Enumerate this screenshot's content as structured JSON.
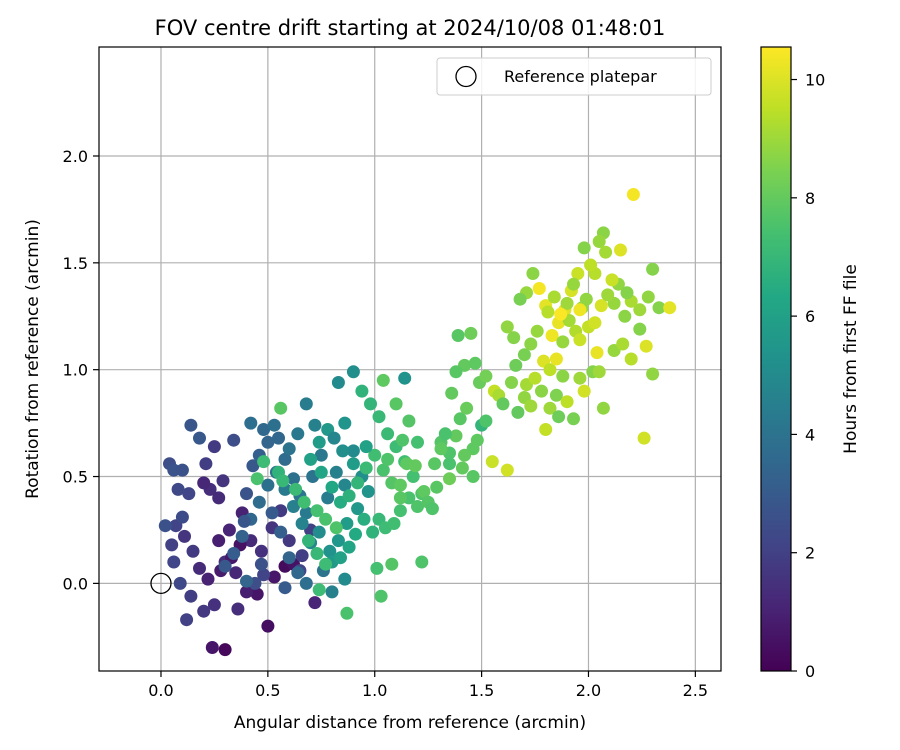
{
  "chart_data": {
    "type": "scatter",
    "title": "FOV centre drift starting at 2024/10/08 01:48:01",
    "xlabel": "Angular distance from reference (arcmin)",
    "ylabel": "Rotation from reference (arcmin)",
    "xlim": [
      -0.29,
      2.62
    ],
    "ylim": [
      -0.41,
      2.51
    ],
    "xticks": [
      0.0,
      0.5,
      1.0,
      1.5,
      2.0,
      2.5
    ],
    "xtick_labels": [
      "0.0",
      "0.5",
      "1.0",
      "1.5",
      "2.0",
      "2.5"
    ],
    "yticks": [
      0.0,
      0.5,
      1.0,
      1.5,
      2.0
    ],
    "ytick_labels": [
      "0.0",
      "0.5",
      "1.0",
      "1.5",
      "2.0"
    ],
    "grid": true,
    "legend": {
      "position": "top-right",
      "entries": [
        "Reference platepar"
      ]
    },
    "colorbar": {
      "label": "Hours from first FF file",
      "range": [
        0,
        10.55
      ],
      "ticks": [
        0,
        2,
        4,
        6,
        8,
        10
      ],
      "tick_labels": [
        "0",
        "2",
        "4",
        "6",
        "8",
        "10"
      ],
      "colormap": "viridis"
    },
    "reference_point": {
      "x": 0.0,
      "y": 0.0
    },
    "points": [
      [
        0.3,
        -0.31,
        0.2
      ],
      [
        0.24,
        -0.3,
        0.6
      ],
      [
        0.5,
        -0.2,
        0.4
      ],
      [
        0.58,
        0.08,
        0.3
      ],
      [
        0.62,
        0.09,
        0.5
      ],
      [
        0.53,
        0.03,
        0.7
      ],
      [
        0.45,
        -0.05,
        0.6
      ],
      [
        0.4,
        -0.04,
        0.9
      ],
      [
        0.35,
        0.05,
        1.2
      ],
      [
        0.3,
        0.1,
        1.4
      ],
      [
        0.27,
        0.2,
        0.9
      ],
      [
        0.32,
        0.25,
        1.1
      ],
      [
        0.38,
        0.33,
        1.0
      ],
      [
        0.42,
        0.2,
        1.3
      ],
      [
        0.47,
        0.15,
        1.5
      ],
      [
        0.52,
        0.26,
        1.6
      ],
      [
        0.56,
        0.34,
        1.8
      ],
      [
        0.6,
        0.2,
        1.7
      ],
      [
        0.66,
        0.13,
        1.9
      ],
      [
        0.7,
        0.25,
        2.0
      ],
      [
        0.72,
        -0.09,
        1.1
      ],
      [
        0.65,
        0.06,
        2.2
      ],
      [
        0.48,
        0.04,
        2.1
      ],
      [
        0.44,
        0.0,
        2.5
      ],
      [
        0.36,
        -0.12,
        1.4
      ],
      [
        0.25,
        -0.1,
        1.5
      ],
      [
        0.2,
        -0.13,
        1.7
      ],
      [
        0.14,
        -0.06,
        1.9
      ],
      [
        0.12,
        -0.17,
        2.0
      ],
      [
        0.09,
        0.0,
        2.3
      ],
      [
        0.06,
        0.1,
        2.2
      ],
      [
        0.05,
        0.18,
        2.0
      ],
      [
        0.07,
        0.27,
        2.1
      ],
      [
        0.11,
        0.22,
        1.6
      ],
      [
        0.15,
        0.15,
        1.8
      ],
      [
        0.18,
        0.07,
        1.3
      ],
      [
        0.22,
        0.02,
        1.0
      ],
      [
        0.28,
        0.06,
        0.8
      ],
      [
        0.33,
        0.12,
        0.7
      ],
      [
        0.37,
        0.18,
        0.5
      ],
      [
        0.02,
        0.27,
        2.6
      ],
      [
        0.1,
        0.31,
        2.4
      ],
      [
        0.13,
        0.42,
        2.2
      ],
      [
        0.08,
        0.44,
        2.3
      ],
      [
        0.04,
        0.56,
        2.5
      ],
      [
        0.06,
        0.53,
        2.7
      ],
      [
        0.1,
        0.53,
        2.6
      ],
      [
        0.14,
        0.74,
        2.8
      ],
      [
        0.18,
        0.68,
        2.9
      ],
      [
        0.21,
        0.56,
        1.9
      ],
      [
        0.25,
        0.64,
        1.8
      ],
      [
        0.29,
        0.48,
        1.6
      ],
      [
        0.23,
        0.44,
        1.4
      ],
      [
        0.27,
        0.4,
        1.3
      ],
      [
        0.2,
        0.47,
        1.2
      ],
      [
        0.34,
        0.67,
        2.5
      ],
      [
        0.4,
        0.42,
        2.7
      ],
      [
        0.43,
        0.55,
        2.9
      ],
      [
        0.46,
        0.6,
        3.2
      ],
      [
        0.5,
        0.66,
        3.4
      ],
      [
        0.48,
        0.72,
        3.6
      ],
      [
        0.42,
        0.75,
        3.8
      ],
      [
        0.55,
        0.68,
        3.5
      ],
      [
        0.58,
        0.58,
        3.7
      ],
      [
        0.62,
        0.49,
        3.9
      ],
      [
        0.65,
        0.41,
        4.1
      ],
      [
        0.68,
        0.33,
        4.3
      ],
      [
        0.71,
        0.5,
        4.0
      ],
      [
        0.75,
        0.6,
        4.2
      ],
      [
        0.78,
        0.4,
        4.4
      ],
      [
        0.82,
        0.52,
        4.6
      ],
      [
        0.86,
        0.46,
        4.8
      ],
      [
        0.9,
        0.62,
        5.0
      ],
      [
        0.94,
        0.5,
        5.2
      ],
      [
        0.97,
        0.43,
        5.4
      ],
      [
        0.92,
        0.35,
        5.6
      ],
      [
        0.87,
        0.28,
        5.8
      ],
      [
        0.83,
        0.2,
        5.5
      ],
      [
        0.79,
        0.15,
        5.3
      ],
      [
        0.74,
        0.24,
        5.1
      ],
      [
        0.7,
        0.19,
        4.9
      ],
      [
        0.66,
        0.28,
        4.7
      ],
      [
        0.62,
        0.36,
        4.5
      ],
      [
        0.58,
        0.44,
        4.3
      ],
      [
        0.54,
        0.52,
        4.1
      ],
      [
        0.5,
        0.46,
        3.9
      ],
      [
        0.46,
        0.38,
        3.7
      ],
      [
        0.42,
        0.3,
        3.5
      ],
      [
        0.38,
        0.22,
        3.3
      ],
      [
        0.34,
        0.14,
        3.1
      ],
      [
        0.3,
        0.08,
        2.9
      ],
      [
        0.39,
        0.29,
        2.8
      ],
      [
        0.52,
        0.33,
        3.0
      ],
      [
        0.56,
        0.24,
        3.2
      ],
      [
        0.6,
        0.12,
        3.4
      ],
      [
        0.64,
        0.05,
        3.6
      ],
      [
        0.68,
        0.0,
        3.8
      ],
      [
        0.58,
        -0.02,
        3.0
      ],
      [
        0.4,
        0.01,
        3.4
      ],
      [
        0.47,
        0.09,
        2.6
      ],
      [
        0.76,
        0.06,
        4.0
      ],
      [
        0.8,
        -0.04,
        4.6
      ],
      [
        0.86,
        0.02,
        5.0
      ],
      [
        0.8,
        0.1,
        5.7
      ],
      [
        0.84,
        0.12,
        6.0
      ],
      [
        0.88,
        0.17,
        6.2
      ],
      [
        0.91,
        0.23,
        6.4
      ],
      [
        0.95,
        0.3,
        6.6
      ],
      [
        0.99,
        0.24,
        6.8
      ],
      [
        1.02,
        0.3,
        7.0
      ],
      [
        1.05,
        0.26,
        7.2
      ],
      [
        1.09,
        0.28,
        7.3
      ],
      [
        1.12,
        0.34,
        7.4
      ],
      [
        1.16,
        0.4,
        7.5
      ],
      [
        1.2,
        0.36,
        7.6
      ],
      [
        1.22,
        0.42,
        7.6
      ],
      [
        1.18,
        0.5,
        7.4
      ],
      [
        1.14,
        0.57,
        7.3
      ],
      [
        1.1,
        0.64,
        7.2
      ],
      [
        1.06,
        0.7,
        7.1
      ],
      [
        1.02,
        0.78,
        7.0
      ],
      [
        0.98,
        0.84,
        6.9
      ],
      [
        0.94,
        0.9,
        6.8
      ],
      [
        0.9,
        0.99,
        5.2
      ],
      [
        0.83,
        0.94,
        5.0
      ],
      [
        0.86,
        0.75,
        5.4
      ],
      [
        0.78,
        0.72,
        5.6
      ],
      [
        0.74,
        0.66,
        5.8
      ],
      [
        0.7,
        0.58,
        6.0
      ],
      [
        0.75,
        0.52,
        6.2
      ],
      [
        0.8,
        0.45,
        6.3
      ],
      [
        0.84,
        0.38,
        6.5
      ],
      [
        0.88,
        0.41,
        6.7
      ],
      [
        0.92,
        0.47,
        6.9
      ],
      [
        0.96,
        0.54,
        7.1
      ],
      [
        1.0,
        0.6,
        7.3
      ],
      [
        1.04,
        0.53,
        7.5
      ],
      [
        1.08,
        0.47,
        7.7
      ],
      [
        1.12,
        0.4,
        7.8
      ],
      [
        1.15,
        0.56,
        7.9
      ],
      [
        1.13,
        0.67,
        7.6
      ],
      [
        1.16,
        0.76,
        7.7
      ],
      [
        1.1,
        0.84,
        7.8
      ],
      [
        1.14,
        0.96,
        5.3
      ],
      [
        1.04,
        0.95,
        7.9
      ],
      [
        0.96,
        0.64,
        6.0
      ],
      [
        0.9,
        0.56,
        5.8
      ],
      [
        0.85,
        0.62,
        5.2
      ],
      [
        0.81,
        0.68,
        4.8
      ],
      [
        0.72,
        0.74,
        4.6
      ],
      [
        0.68,
        0.84,
        4.4
      ],
      [
        0.64,
        0.7,
        4.2
      ],
      [
        0.6,
        0.63,
        4.0
      ],
      [
        0.56,
        0.82,
        7.8
      ],
      [
        0.53,
        0.74,
        3.9
      ],
      [
        0.45,
        0.49,
        7.5
      ],
      [
        0.48,
        0.57,
        7.2
      ],
      [
        0.55,
        0.52,
        6.8
      ],
      [
        0.57,
        0.48,
        7.0
      ],
      [
        0.63,
        0.44,
        7.1
      ],
      [
        0.67,
        0.38,
        7.3
      ],
      [
        0.73,
        0.34,
        7.4
      ],
      [
        0.77,
        0.3,
        7.5
      ],
      [
        0.82,
        0.26,
        7.6
      ],
      [
        0.69,
        0.2,
        6.9
      ],
      [
        0.73,
        0.14,
        7.0
      ],
      [
        0.77,
        0.09,
        7.2
      ],
      [
        0.74,
        -0.03,
        7.2
      ],
      [
        0.87,
        -0.14,
        7.5
      ],
      [
        1.03,
        -0.06,
        7.6
      ],
      [
        1.01,
        0.07,
        7.4
      ],
      [
        1.08,
        0.09,
        7.7
      ],
      [
        1.22,
        0.1,
        7.6
      ],
      [
        1.12,
        0.46,
        7.9
      ],
      [
        1.19,
        0.55,
        8.0
      ],
      [
        1.23,
        0.43,
        7.9
      ],
      [
        1.28,
        0.56,
        7.8
      ],
      [
        1.31,
        0.66,
        7.7
      ],
      [
        1.35,
        0.61,
        7.6
      ],
      [
        1.38,
        0.69,
        8.0
      ],
      [
        1.33,
        0.7,
        7.5
      ],
      [
        1.4,
        0.77,
        7.8
      ],
      [
        1.43,
        0.82,
        8.1
      ],
      [
        1.46,
        0.63,
        7.9
      ],
      [
        1.5,
        0.74,
        6.9
      ],
      [
        1.48,
        0.67,
        7.9
      ],
      [
        1.42,
        0.6,
        8.0
      ],
      [
        1.36,
        0.89,
        8.0
      ],
      [
        1.39,
        1.16,
        7.8
      ],
      [
        1.42,
        1.02,
        8.0
      ],
      [
        1.45,
        1.17,
        8.2
      ],
      [
        1.49,
        0.94,
        8.1
      ],
      [
        1.52,
        0.97,
        8.3
      ],
      [
        1.56,
        0.9,
        9.6
      ],
      [
        1.58,
        0.88,
        9.2
      ],
      [
        1.55,
        0.57,
        9.7
      ],
      [
        1.62,
        0.53,
        9.8
      ],
      [
        1.6,
        0.84,
        8.0
      ],
      [
        1.64,
        0.94,
        8.6
      ],
      [
        1.67,
        0.8,
        8.0
      ],
      [
        1.7,
        0.87,
        8.8
      ],
      [
        1.73,
        0.83,
        9.0
      ],
      [
        1.71,
        0.93,
        9.1
      ],
      [
        1.75,
        0.96,
        9.4
      ],
      [
        1.78,
        0.9,
        8.7
      ],
      [
        1.8,
        0.72,
        9.6
      ],
      [
        1.82,
        0.82,
        9.0
      ],
      [
        1.85,
        0.88,
        8.5
      ],
      [
        1.88,
        0.97,
        8.7
      ],
      [
        1.86,
        0.78,
        8.2
      ],
      [
        1.9,
        0.85,
        9.5
      ],
      [
        1.93,
        0.77,
        8.4
      ],
      [
        1.96,
        0.96,
        9.0
      ],
      [
        1.98,
        0.9,
        9.8
      ],
      [
        2.02,
        0.99,
        8.6
      ],
      [
        2.05,
        0.99,
        9.0
      ],
      [
        2.07,
        0.82,
        8.8
      ],
      [
        2.12,
        1.09,
        8.9
      ],
      [
        2.16,
        1.12,
        9.2
      ],
      [
        2.2,
        1.05,
        9.4
      ],
      [
        2.24,
        1.19,
        8.6
      ],
      [
        2.27,
        1.11,
        10.0
      ],
      [
        2.3,
        0.98,
        8.8
      ],
      [
        2.26,
        0.68,
        9.8
      ],
      [
        2.33,
        1.29,
        8.6
      ],
      [
        2.38,
        1.29,
        10.1
      ],
      [
        2.3,
        1.47,
        8.6
      ],
      [
        2.28,
        1.34,
        8.8
      ],
      [
        2.24,
        1.28,
        9.0
      ],
      [
        2.2,
        1.32,
        9.2
      ],
      [
        2.17,
        1.25,
        8.7
      ],
      [
        2.12,
        1.31,
        8.9
      ],
      [
        2.07,
        1.64,
        8.7
      ],
      [
        2.05,
        1.6,
        8.9
      ],
      [
        2.08,
        1.55,
        9.1
      ],
      [
        2.03,
        1.45,
        9.4
      ],
      [
        2.01,
        1.49,
        9.5
      ],
      [
        1.98,
        1.57,
        8.6
      ],
      [
        1.95,
        1.45,
        9.7
      ],
      [
        1.92,
        1.37,
        9.9
      ],
      [
        1.89,
        1.28,
        10.0
      ],
      [
        1.86,
        1.22,
        10.2
      ],
      [
        1.83,
        1.16,
        10.3
      ],
      [
        1.8,
        1.3,
        10.1
      ],
      [
        1.77,
        1.38,
        10.4
      ],
      [
        1.74,
        1.45,
        8.7
      ],
      [
        1.71,
        1.36,
        8.9
      ],
      [
        1.68,
        1.33,
        8.4
      ],
      [
        1.65,
        1.15,
        8.6
      ],
      [
        1.62,
        1.2,
        8.8
      ],
      [
        1.66,
        1.02,
        8.2
      ],
      [
        1.7,
        1.07,
        8.4
      ],
      [
        1.73,
        1.12,
        8.7
      ],
      [
        1.76,
        1.18,
        8.9
      ],
      [
        1.79,
        1.04,
        10.0
      ],
      [
        1.82,
        1.0,
        9.5
      ],
      [
        1.85,
        1.05,
        10.2
      ],
      [
        1.88,
        1.13,
        8.9
      ],
      [
        1.91,
        1.23,
        9.1
      ],
      [
        1.94,
        1.18,
        9.3
      ],
      [
        1.97,
        1.29,
        8.9
      ],
      [
        2.0,
        1.2,
        9.6
      ],
      [
        2.03,
        1.22,
        9.8
      ],
      [
        2.06,
        1.3,
        9.9
      ],
      [
        2.09,
        1.35,
        9.0
      ],
      [
        2.14,
        1.4,
        8.8
      ],
      [
        2.18,
        1.36,
        8.6
      ],
      [
        2.21,
        1.82,
        10.4
      ],
      [
        2.15,
        1.56,
        10.0
      ],
      [
        2.11,
        1.42,
        9.7
      ],
      [
        1.99,
        1.33,
        8.8
      ],
      [
        1.96,
        1.28,
        10.3
      ],
      [
        1.93,
        1.4,
        8.9
      ],
      [
        1.9,
        1.31,
        9.0
      ],
      [
        1.87,
        1.26,
        10.5
      ],
      [
        1.84,
        1.34,
        9.2
      ],
      [
        1.81,
        1.27,
        9.4
      ],
      [
        1.96,
        1.14,
        9.7
      ],
      [
        2.04,
        1.08,
        10.2
      ],
      [
        1.47,
        1.03,
        7.9
      ],
      [
        1.52,
        0.76,
        7.6
      ],
      [
        1.35,
        0.49,
        8.2
      ],
      [
        1.29,
        0.45,
        7.8
      ],
      [
        1.25,
        0.38,
        7.7
      ],
      [
        1.46,
        0.5,
        7.8
      ],
      [
        1.41,
        0.54,
        8.0
      ],
      [
        1.35,
        0.56,
        7.5
      ],
      [
        1.31,
        0.63,
        7.9
      ],
      [
        1.38,
        0.99,
        7.8
      ],
      [
        1.27,
        0.35,
        7.6
      ],
      [
        1.2,
        0.66,
        7.4
      ],
      [
        1.06,
        0.58,
        7.6
      ]
    ]
  }
}
